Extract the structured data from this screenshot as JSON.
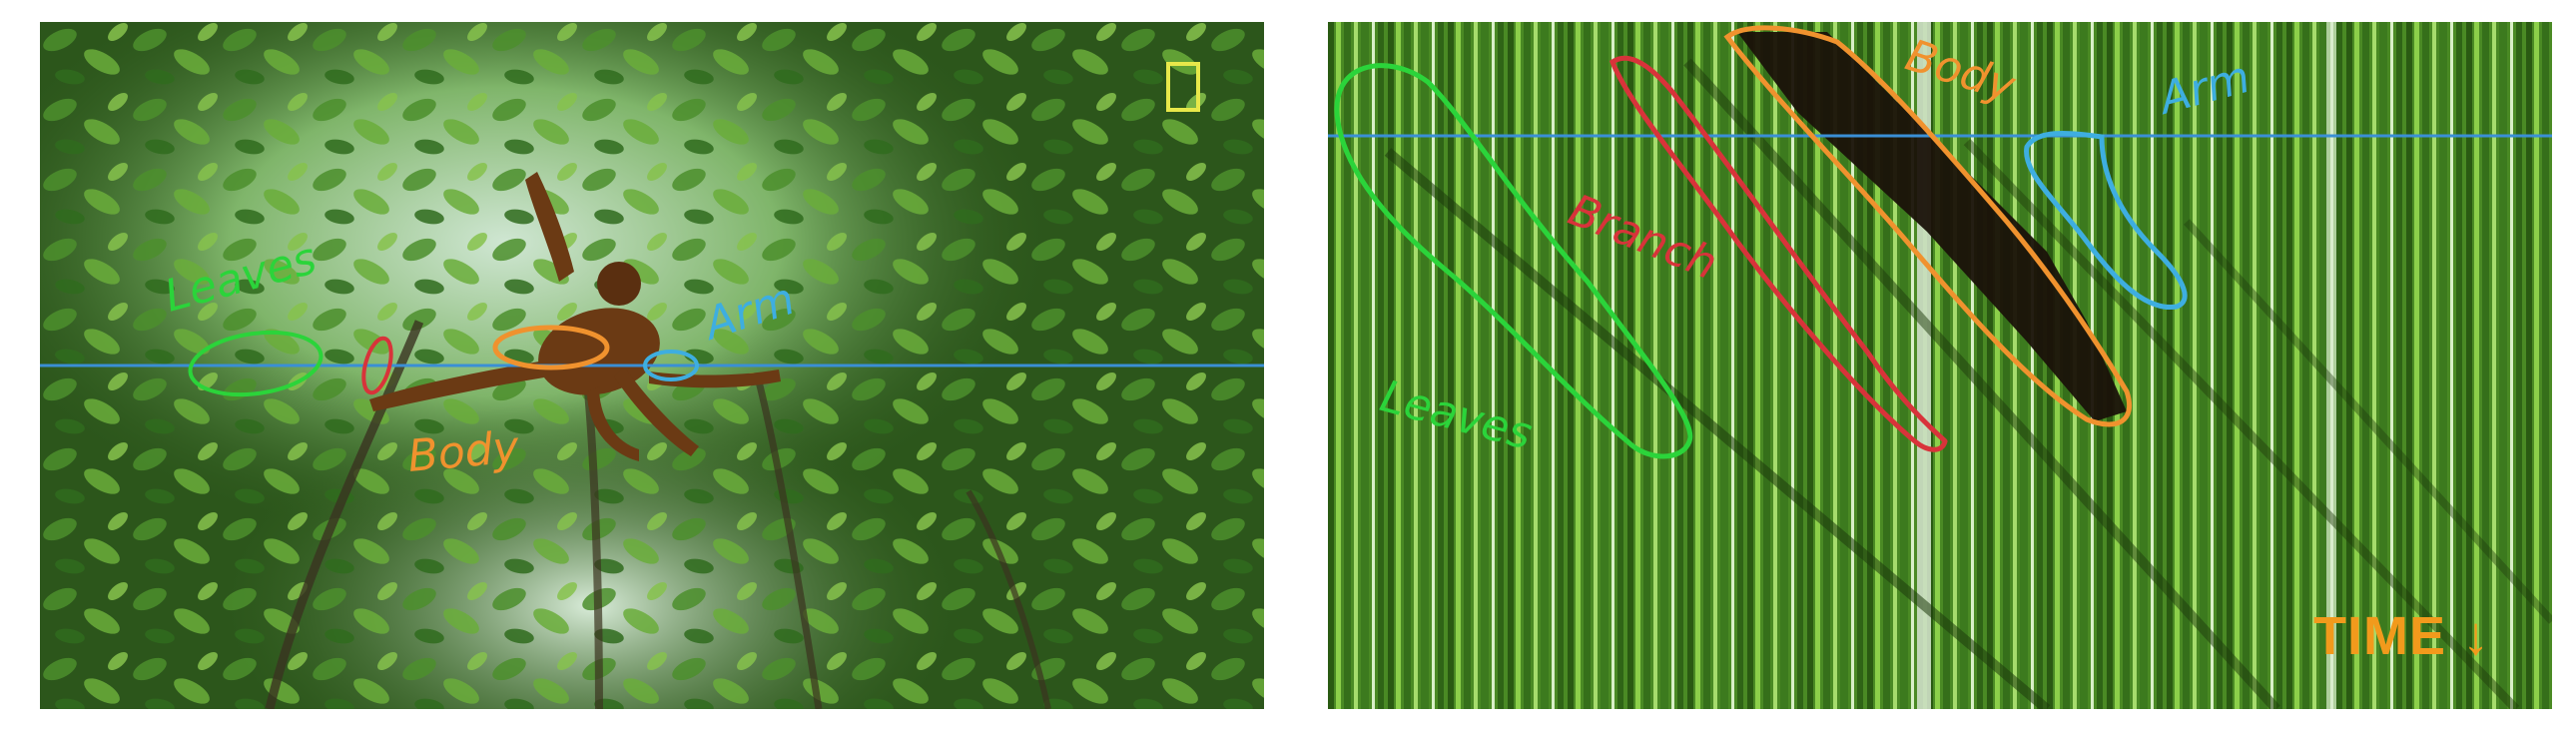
{
  "left_panel": {
    "scene": "orangutan swinging between branches in rainforest canopy",
    "labels": {
      "leaves": "Leaves",
      "body": "Body",
      "arm": "Arm"
    }
  },
  "right_panel": {
    "scene": "slit-scan of the scanline over time",
    "labels": {
      "body": "Body",
      "arm": "Arm",
      "branch": "Branch",
      "leaves": "Leaves"
    },
    "time_label": "TIME",
    "time_arrow": "↓"
  },
  "colors": {
    "scanline": "#3a8fd6",
    "leaves": "#2bd43a",
    "branch": "#d8333a",
    "body": "#f0922e",
    "arm": "#3eaee0",
    "marker": "#e8e84a",
    "time": "#f29a1c"
  }
}
